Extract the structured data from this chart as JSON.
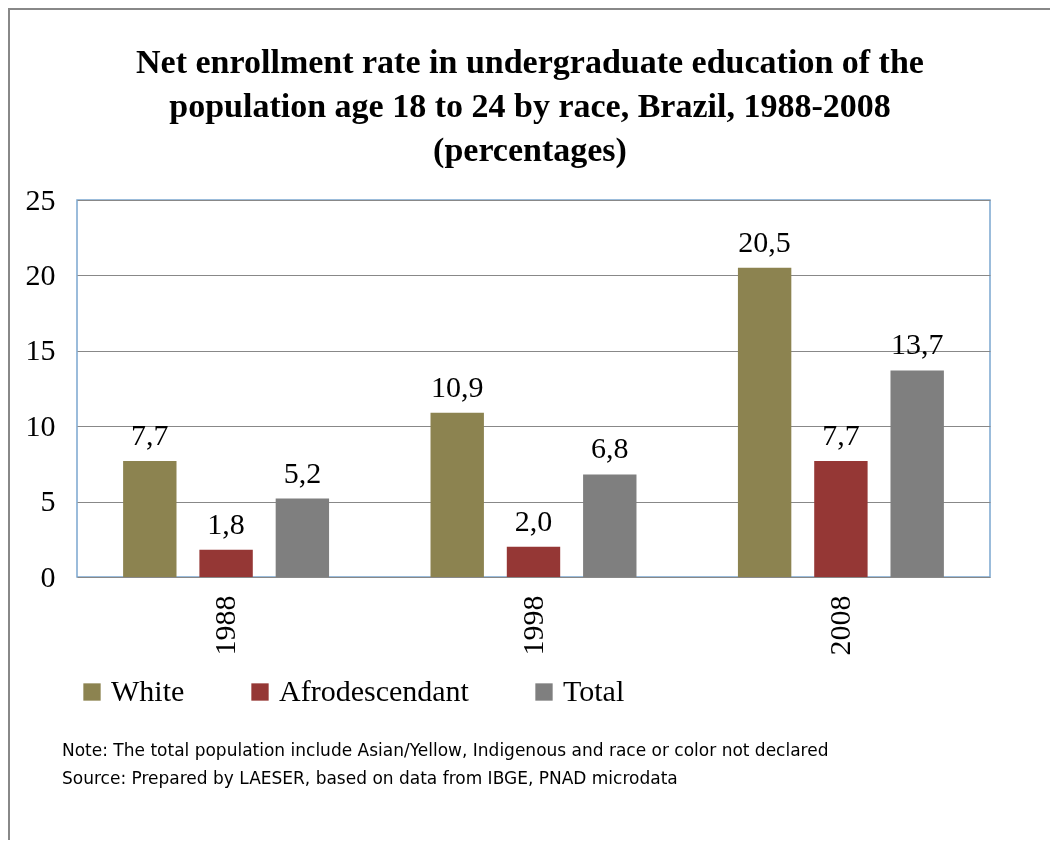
{
  "chart_data": {
    "type": "bar",
    "title": "Net enrollment rate in undergraduate education of the population age 18 to 24 by race, Brazil, 1988-2008 (percentages)",
    "categories": [
      "1988",
      "1998",
      "2008"
    ],
    "series": [
      {
        "name": "White",
        "color": "#8c8350",
        "values": [
          7.7,
          10.9,
          20.5
        ],
        "value_labels": [
          "7,7",
          "10,9",
          "20,5"
        ]
      },
      {
        "name": "Afrodescendant",
        "color": "#953735",
        "values": [
          1.8,
          2.0,
          7.7
        ],
        "value_labels": [
          "1,8",
          "2,0",
          "7,7"
        ]
      },
      {
        "name": "Total",
        "color": "#7f7f7f",
        "values": [
          5.2,
          6.8,
          13.7
        ],
        "value_labels": [
          "5,2",
          "6,8",
          "13,7"
        ]
      }
    ],
    "ylim": [
      0,
      25
    ],
    "yticks": [
      0,
      5,
      10,
      15,
      20,
      25
    ],
    "grid": "y",
    "legend": "bottom",
    "annotations": [
      "Note: The total population include Asian/Yellow, Indigenous and  race or color not declared",
      "Source: Prepared by LAESER, based on data from IBGE, PNAD microdata"
    ]
  }
}
